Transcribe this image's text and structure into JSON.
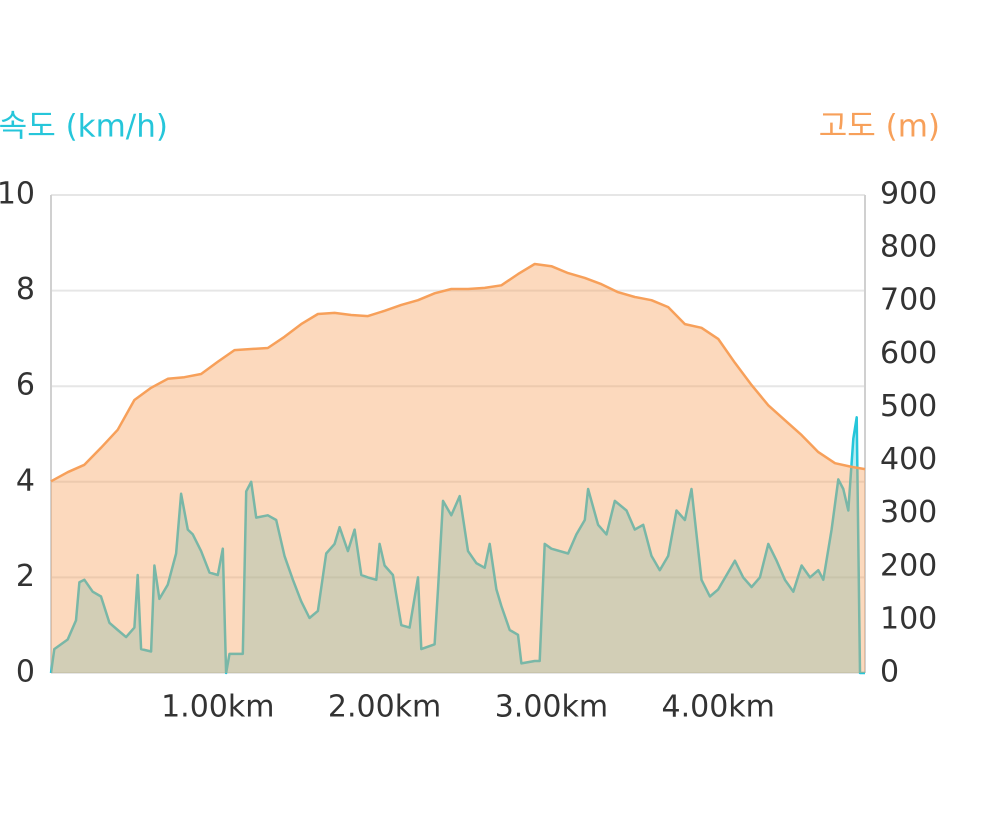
{
  "chart_data": {
    "type": "area",
    "ylabel": "속도 (km/h)",
    "y2label": "고도 (m)",
    "xlim": [
      0,
      4.88
    ],
    "xticks": [
      {
        "value": 1,
        "label": "1.00km"
      },
      {
        "value": 2,
        "label": "2.00km"
      },
      {
        "value": 3,
        "label": "3.00km"
      },
      {
        "value": 4,
        "label": "4.00km"
      }
    ],
    "ylim": [
      0,
      10
    ],
    "yticks": [
      0,
      2,
      4,
      6,
      8,
      10
    ],
    "y2lim": [
      0,
      900
    ],
    "y2ticks": [
      0,
      100,
      200,
      300,
      400,
      500,
      600,
      700,
      800,
      900
    ],
    "grid": true,
    "series": [
      {
        "color": "#26c6da",
        "x": [
          0,
          0.02,
          0.1,
          0.15,
          0.17,
          0.2,
          0.25,
          0.3,
          0.35,
          0.4,
          0.45,
          0.5,
          0.52,
          0.54,
          0.6,
          0.62,
          0.65,
          0.7,
          0.75,
          0.78,
          0.82,
          0.85,
          0.9,
          0.95,
          1.0,
          1.03,
          1.05,
          1.07,
          1.15,
          1.17,
          1.2,
          1.23,
          1.3,
          1.35,
          1.4,
          1.45,
          1.5,
          1.55,
          1.6,
          1.65,
          1.7,
          1.73,
          1.78,
          1.82,
          1.86,
          1.9,
          1.95,
          1.97,
          2.0,
          2.05,
          2.1,
          2.15,
          2.2,
          2.22,
          2.3,
          2.32,
          2.35,
          2.4,
          2.45,
          2.5,
          2.55,
          2.6,
          2.63,
          2.67,
          2.7,
          2.75,
          2.8,
          2.82,
          2.9,
          2.93,
          2.96,
          3.0,
          3.1,
          3.15,
          3.2,
          3.22,
          3.28,
          3.33,
          3.38,
          3.45,
          3.5,
          3.55,
          3.6,
          3.65,
          3.7,
          3.75,
          3.8,
          3.84,
          3.9,
          3.95,
          4.0,
          4.05,
          4.1,
          4.15,
          4.2,
          4.25,
          4.3,
          4.35,
          4.4,
          4.45,
          4.5,
          4.55,
          4.6,
          4.63,
          4.68,
          4.72,
          4.75,
          4.78,
          4.81,
          4.83,
          4.85,
          4.88
        ],
        "values": [
          0,
          0.5,
          0.7,
          1.1,
          1.9,
          1.95,
          1.7,
          1.6,
          1.05,
          0.9,
          0.75,
          0.95,
          2.05,
          0.5,
          0.45,
          2.25,
          1.55,
          1.85,
          2.5,
          3.75,
          3.0,
          2.9,
          2.55,
          2.1,
          2.05,
          2.6,
          0,
          0.4,
          0.4,
          3.8,
          4.0,
          3.25,
          3.3,
          3.2,
          2.45,
          1.95,
          1.5,
          1.15,
          1.3,
          2.5,
          2.7,
          3.05,
          2.55,
          3.0,
          2.05,
          2.0,
          1.95,
          2.7,
          2.25,
          2.05,
          1.0,
          0.95,
          2.0,
          0.5,
          0.6,
          1.75,
          3.6,
          3.3,
          3.7,
          2.55,
          2.3,
          2.2,
          2.7,
          1.75,
          1.4,
          0.9,
          0.8,
          0.2,
          0.25,
          0.25,
          2.7,
          2.6,
          2.5,
          2.9,
          3.2,
          3.85,
          3.1,
          2.9,
          3.6,
          3.4,
          3.0,
          3.1,
          2.45,
          2.15,
          2.45,
          3.4,
          3.2,
          3.85,
          1.95,
          1.6,
          1.75,
          2.05,
          2.35,
          2.0,
          1.8,
          2.0,
          2.7,
          2.35,
          1.95,
          1.7,
          2.25,
          2.0,
          2.15,
          1.95,
          3.0,
          4.05,
          3.85,
          3.4,
          4.9,
          5.35,
          0,
          0
        ]
      },
      {
        "color": "#f7a05a",
        "axis": "y2",
        "x": [
          0,
          0.1,
          0.2,
          0.3,
          0.4,
          0.5,
          0.6,
          0.7,
          0.8,
          0.9,
          1.0,
          1.1,
          1.2,
          1.3,
          1.4,
          1.5,
          1.6,
          1.7,
          1.8,
          1.9,
          2.0,
          2.1,
          2.2,
          2.3,
          2.4,
          2.5,
          2.6,
          2.7,
          2.8,
          2.9,
          3.0,
          3.1,
          3.2,
          3.3,
          3.4,
          3.5,
          3.6,
          3.7,
          3.8,
          3.9,
          4.0,
          4.1,
          4.2,
          4.3,
          4.4,
          4.5,
          4.6,
          4.7,
          4.8,
          4.88
        ],
        "values": [
          361,
          378,
          392,
          424,
          458,
          514,
          537,
          554,
          557,
          563,
          586,
          608,
          610,
          612,
          633,
          657,
          676,
          678,
          674,
          672,
          682,
          693,
          702,
          715,
          723,
          723,
          725,
          730,
          751,
          770,
          766,
          753,
          744,
          732,
          717,
          708,
          702,
          689,
          657,
          650,
          629,
          584,
          542,
          504,
          476,
          448,
          416,
          395,
          388,
          384
        ]
      }
    ]
  }
}
